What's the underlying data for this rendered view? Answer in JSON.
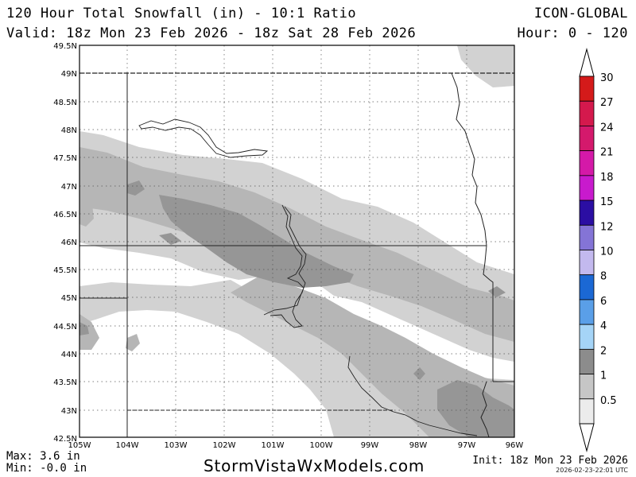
{
  "header": {
    "title": "120 Hour Total Snowfall (in) - 10:1 Ratio",
    "valid": "Valid: 18z Mon 23 Feb 2026 - 18z Sat 28 Feb 2026",
    "model": "ICON-GLOBAL",
    "hours": "Hour: 0 - 120"
  },
  "map": {
    "lat_labels": [
      "49.5N",
      "49N",
      "48.5N",
      "48N",
      "47.5N",
      "47N",
      "46.5N",
      "46N",
      "45.5N",
      "45N",
      "44.5N",
      "44N",
      "43.5N",
      "43N",
      "42.5N"
    ],
    "lon_labels": [
      "105W",
      "104W",
      "103W",
      "102W",
      "101W",
      "100W",
      "99W",
      "98W",
      "97W",
      "96W"
    ],
    "shading_colors": {
      "light": "#d2d2d2",
      "medium": "#b6b6b6",
      "dark": "#969696",
      "darkest": "#8a8a8a"
    }
  },
  "legend": {
    "bins": [
      {
        "label": "30",
        "color": "#d41a1a"
      },
      {
        "label": "27",
        "color": "#d4194d"
      },
      {
        "label": "24",
        "color": "#d4196c"
      },
      {
        "label": "21",
        "color": "#d419a8"
      },
      {
        "label": "18",
        "color": "#c81acd"
      },
      {
        "label": "15",
        "color": "#2b0ea3"
      },
      {
        "label": "12",
        "color": "#8474d6"
      },
      {
        "label": "10",
        "color": "#c3b9ee"
      },
      {
        "label": "8",
        "color": "#1b68d4"
      },
      {
        "label": "6",
        "color": "#5a9fe8"
      },
      {
        "label": "4",
        "color": "#a5d4f7"
      },
      {
        "label": "2",
        "color": "#8c8c8c"
      },
      {
        "label": "1",
        "color": "#c6c6c6"
      },
      {
        "label": "0.5",
        "color": "#ececec"
      }
    ]
  },
  "footer": {
    "max": "Max: 3.6 in",
    "min": "Min: -0.0 in",
    "site": "StormVistaWxModels.com",
    "init": "Init: 18z Mon 23 Feb 2026",
    "stamp": "2026-02-23-22:01 UTC"
  }
}
